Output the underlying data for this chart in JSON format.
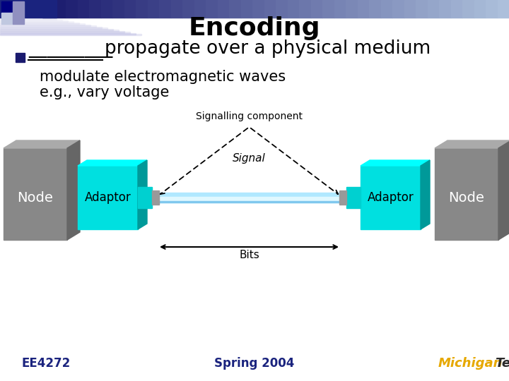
{
  "title": "Encoding",
  "title_fontsize": 26,
  "title_fontweight": "bold",
  "bullet_text": "_________propagate over a physical medium",
  "bullet_fontsize": 19,
  "sub_bullet1": "modulate electromagnetic waves",
  "sub_bullet2": "e.g., vary voltage",
  "sub_bullet_fontsize": 15,
  "footer_left": "EE4272",
  "footer_center": "Spring 2004",
  "footer_fontsize": 12,
  "bg_color": "#ffffff",
  "bullet_square_color": "#1a1a6e",
  "node_front_color": "#888888",
  "node_top_color": "#aaaaaa",
  "node_right_color": "#666666",
  "adaptor_front_color": "#00e0e0",
  "adaptor_top_color": "#00ffff",
  "adaptor_right_color": "#009999",
  "tube_main_color": "#b0e8ff",
  "tube_highlight_color": "#e0f8ff",
  "tube_dark_color": "#80c8ee",
  "connector_color": "#999999",
  "michigan_tech_gold": "#FFD700",
  "michigan_tech_dark": "#5a3e00",
  "header_dark": "#1a237e",
  "header_mid": "#5c6bc0",
  "header_light": "#c5cae9"
}
